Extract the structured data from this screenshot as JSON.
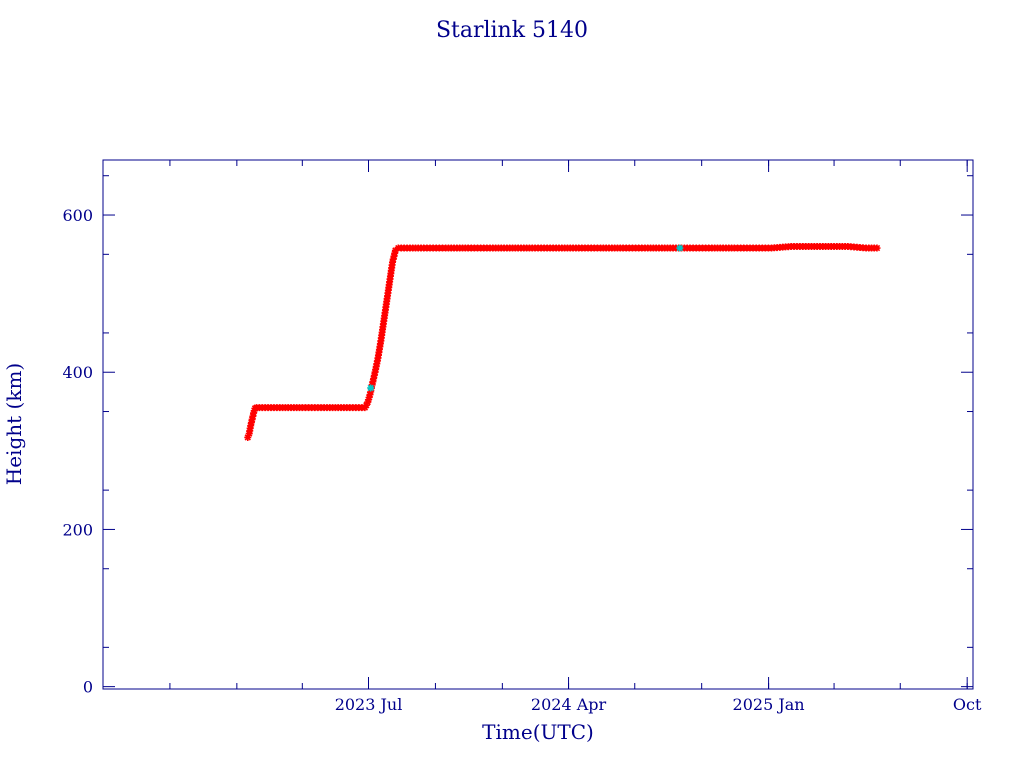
{
  "chart_data": {
    "type": "scatter",
    "title": "Starlink 5140",
    "xlabel": "Time(UTC)",
    "ylabel": "Height (km)",
    "xlim": [
      "2022-07-01",
      "2025-10-09"
    ],
    "ylim": [
      -3,
      670
    ],
    "x_ticks": [
      {
        "date": "2023-07-01",
        "label": "2023 Jul"
      },
      {
        "date": "2024-04-01",
        "label": "2024 Apr"
      },
      {
        "date": "2025-01-01",
        "label": "2025 Jan"
      },
      {
        "date": "2025-10-01",
        "label": "Oct"
      }
    ],
    "y_ticks": [
      0,
      200,
      400,
      600
    ],
    "colors": {
      "axis": "#00008b",
      "points": "#ff0000",
      "highlight": "#00c8c8",
      "line": "#00008b"
    },
    "series": [
      {
        "x": [
          "2023-01-16",
          "2023-01-18",
          "2023-01-20",
          "2023-01-22",
          "2023-01-24",
          "2023-01-26",
          "2023-01-28",
          "2023-02-01",
          "2023-03-01",
          "2023-04-01",
          "2023-05-01",
          "2023-06-01",
          "2023-06-26",
          "2023-06-28",
          "2023-06-30",
          "2023-07-02",
          "2023-07-04",
          "2023-07-06",
          "2023-07-10",
          "2023-07-14",
          "2023-07-18",
          "2023-07-22",
          "2023-07-26",
          "2023-07-30",
          "2023-08-03",
          "2023-08-07",
          "2023-08-11",
          "2023-08-15",
          "2023-08-19",
          "2023-08-23",
          "2023-08-27",
          "2023-09-15",
          "2023-10-15",
          "2023-11-15",
          "2023-12-15",
          "2024-01-15",
          "2024-02-15",
          "2024-03-15",
          "2024-04-15",
          "2024-05-15",
          "2024-06-15",
          "2024-07-15",
          "2024-08-15",
          "2024-09-15",
          "2024-10-15",
          "2024-11-15",
          "2024-12-15",
          "2025-01-05",
          "2025-02-01",
          "2025-03-01",
          "2025-04-01",
          "2025-04-20",
          "2025-05-15",
          "2025-05-30"
        ],
        "y": [
          317,
          322,
          332,
          340,
          348,
          354,
          355,
          355,
          355,
          355,
          355,
          355,
          355,
          358,
          362,
          368,
          375,
          384,
          400,
          418,
          440,
          465,
          490,
          515,
          540,
          555,
          558,
          558,
          558,
          558,
          558,
          558,
          558,
          558,
          558,
          558,
          558,
          558,
          558,
          558,
          558,
          558,
          558,
          558,
          558,
          558,
          558,
          558,
          560,
          560,
          560,
          560,
          558,
          558
        ]
      }
    ],
    "highlights": [
      {
        "x": "2023-07-04",
        "y": 380
      },
      {
        "x": "2024-09-01",
        "y": 558
      }
    ]
  }
}
